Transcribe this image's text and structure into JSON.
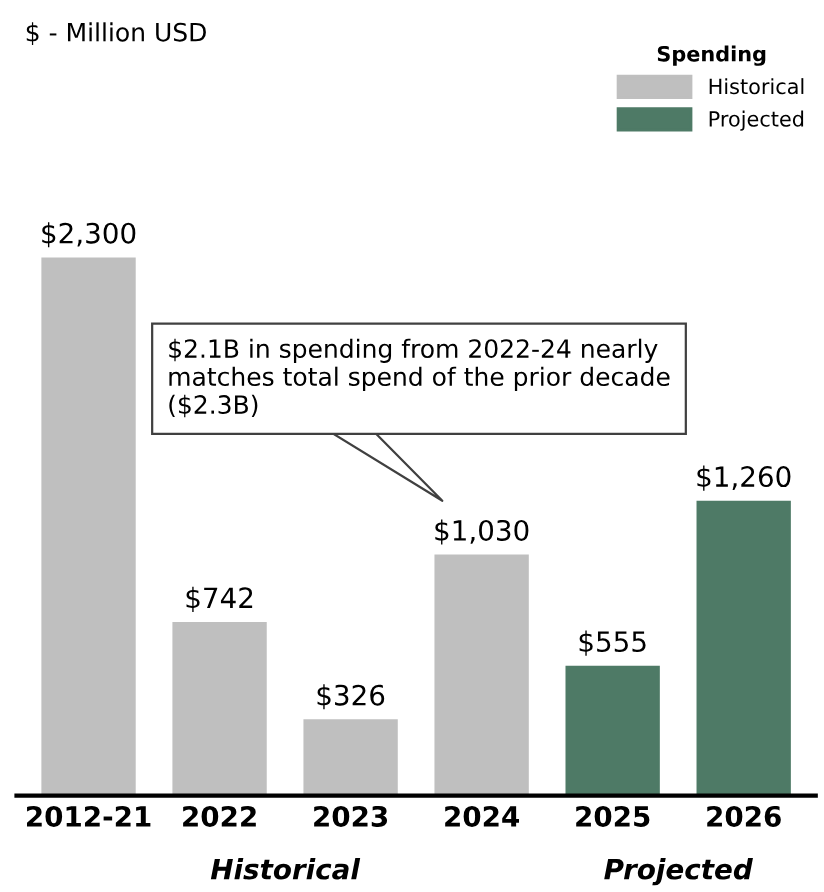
{
  "chart_data": {
    "type": "bar",
    "categories": [
      "2012-21",
      "2022",
      "2023",
      "2024",
      "2025",
      "2026"
    ],
    "series": [
      {
        "name": "Historical",
        "color": "#bfbfbf",
        "values": [
          2300,
          742,
          326,
          1030,
          null,
          null
        ],
        "value_labels": [
          "$2,300",
          "$742",
          "$326",
          "$1,030",
          null,
          null
        ]
      },
      {
        "name": "Projected",
        "color": "#4e7a66",
        "values": [
          null,
          null,
          null,
          null,
          555,
          1260
        ],
        "value_labels": [
          null,
          null,
          null,
          null,
          "$555",
          "$1,260"
        ]
      }
    ],
    "legend": "top right",
    "legend_title": "Spending",
    "annotations": [
      "$ - Million USD",
      "Historical",
      "Projected",
      "$2.1B in spending from 2022-24 nearly matches total spend of the prior decade ($2.3B)"
    ]
  }
}
